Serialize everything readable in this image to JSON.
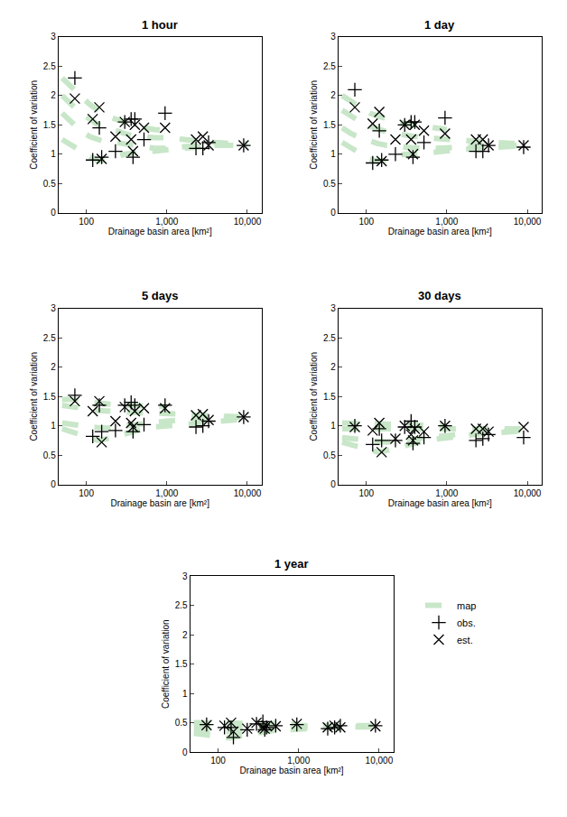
{
  "chart_data": [
    {
      "type": "scatter",
      "title": "1 hour",
      "x_label": "Drainage basin area [km²]",
      "y_label": "Coefficient of variation",
      "log": "x",
      "xlim": [
        45,
        15000
      ],
      "ylim": [
        0,
        3
      ],
      "xticks": [
        100,
        {
          "value": 1000,
          "label": "1,000"
        },
        {
          "value": 10000,
          "label": "10,000"
        }
      ],
      "yticks": [
        0,
        0.5,
        1,
        1.5,
        2,
        2.5,
        3
      ],
      "series": [
        {
          "name": "map",
          "type": "line",
          "line_style": "dash",
          "color": "#c8e6c8",
          "x": [
            50,
            65,
            85,
            110,
            140,
            180,
            230,
            300,
            400,
            520,
            700,
            1000,
            1500,
            2500,
            4000,
            7000,
            10000
          ],
          "values": [
            [
              2.3,
              2.15,
              2.0,
              1.85,
              1.75,
              1.65,
              1.6,
              1.55,
              1.5,
              1.45,
              1.42,
              1.4,
              null,
              null,
              null,
              null,
              null
            ],
            [
              2.0,
              1.85,
              1.7,
              1.6,
              1.5,
              1.45,
              1.4,
              1.35,
              1.3,
              1.3,
              1.28,
              1.28,
              1.25,
              1.22,
              1.2,
              1.18,
              1.18
            ],
            [
              1.7,
              1.55,
              1.4,
              1.3,
              1.25,
              1.2,
              1.2,
              1.18,
              1.15,
              1.12,
              1.1,
              1.1,
              1.12,
              1.15,
              1.15,
              1.15,
              1.15
            ],
            [
              1.25,
              1.15,
              1.05,
              0.95,
              0.88,
              0.9,
              0.95,
              1.0,
              1.02,
              1.05,
              1.05,
              1.08,
              1.1,
              1.12,
              1.15,
              1.15,
              1.15
            ]
          ]
        },
        {
          "name": "obs.",
          "marker": "cross",
          "color": "#000000",
          "x": [
            72,
            120,
            145,
            155,
            230,
            300,
            360,
            380,
            400,
            520,
            950,
            2300,
            2800,
            3300,
            9000
          ],
          "values": [
            2.3,
            0.9,
            1.45,
            0.95,
            1.05,
            1.55,
            1.6,
            0.95,
            1.6,
            1.25,
            1.7,
            1.1,
            1.1,
            1.2,
            1.15
          ]
        },
        {
          "name": "est.",
          "marker": "x",
          "color": "#000000",
          "x": [
            72,
            120,
            145,
            155,
            230,
            300,
            360,
            380,
            400,
            520,
            950,
            2300,
            2800,
            3300,
            9000
          ],
          "values": [
            1.95,
            1.6,
            1.8,
            0.92,
            1.3,
            1.55,
            1.25,
            1.05,
            1.5,
            1.45,
            1.45,
            1.25,
            1.3,
            1.15,
            1.15
          ]
        }
      ]
    },
    {
      "type": "scatter",
      "title": "1 day",
      "x_label": "Drainage basin area [km²]",
      "y_label": "Coefficient of variation",
      "log": "x",
      "xlim": [
        45,
        15000
      ],
      "ylim": [
        0,
        3
      ],
      "xticks": [
        100,
        {
          "value": 1000,
          "label": "1,000"
        },
        {
          "value": 10000,
          "label": "10,000"
        }
      ],
      "yticks": [
        0,
        0.5,
        1,
        1.5,
        2,
        2.5,
        3
      ],
      "series": [
        {
          "name": "map",
          "type": "line",
          "line_style": "dash",
          "color": "#c8e6c8",
          "x": [
            50,
            65,
            85,
            110,
            140,
            180,
            230,
            300,
            400,
            520,
            700,
            1000,
            1500,
            2500,
            4000,
            7000,
            10000
          ],
          "values": [
            [
              2.0,
              1.9,
              1.8,
              1.7,
              1.65,
              1.6,
              1.55,
              1.52,
              1.5,
              1.48,
              1.45,
              1.42,
              null,
              null,
              null,
              null,
              null
            ],
            [
              1.75,
              1.65,
              1.55,
              1.48,
              1.42,
              1.38,
              1.35,
              1.32,
              1.3,
              1.28,
              1.27,
              1.26,
              1.24,
              1.22,
              1.2,
              1.18,
              1.18
            ],
            [
              1.45,
              1.35,
              1.28,
              1.22,
              1.18,
              1.15,
              1.15,
              1.12,
              1.1,
              1.1,
              1.1,
              1.1,
              1.12,
              1.14,
              1.15,
              1.15,
              1.15
            ],
            [
              1.2,
              1.1,
              1.0,
              0.92,
              0.88,
              0.9,
              0.95,
              1.0,
              1.0,
              1.02,
              1.03,
              1.05,
              1.08,
              1.1,
              1.12,
              1.15,
              1.15
            ]
          ]
        },
        {
          "name": "obs.",
          "marker": "cross",
          "color": "#000000",
          "x": [
            72,
            120,
            145,
            155,
            230,
            300,
            360,
            380,
            400,
            520,
            950,
            2300,
            2800,
            3300,
            9000
          ],
          "values": [
            2.1,
            0.85,
            1.4,
            0.9,
            1.0,
            1.5,
            1.55,
            0.95,
            1.55,
            1.2,
            1.62,
            1.05,
            1.05,
            1.15,
            1.12
          ]
        },
        {
          "name": "est.",
          "marker": "x",
          "color": "#000000",
          "x": [
            72,
            120,
            145,
            155,
            230,
            300,
            360,
            380,
            400,
            520,
            950,
            2300,
            2800,
            3300,
            9000
          ],
          "values": [
            1.8,
            1.52,
            1.72,
            0.88,
            1.25,
            1.5,
            1.25,
            1.0,
            1.5,
            1.4,
            1.35,
            1.25,
            1.25,
            1.15,
            1.15
          ]
        }
      ]
    },
    {
      "type": "scatter",
      "title": "5 days",
      "x_label": "Drainage basin are [km²]",
      "y_label": "Coefficient of variation",
      "log": "x",
      "xlim": [
        45,
        15000
      ],
      "ylim": [
        0,
        3
      ],
      "xticks": [
        100,
        {
          "value": 1000,
          "label": "1,000"
        },
        {
          "value": 10000,
          "label": "10,000"
        }
      ],
      "yticks": [
        0,
        0.5,
        1,
        1.5,
        2,
        2.5,
        3
      ],
      "series": [
        {
          "name": "map",
          "type": "line",
          "line_style": "dash",
          "color": "#c8e6c8",
          "x": [
            50,
            65,
            85,
            110,
            140,
            180,
            230,
            300,
            400,
            520,
            700,
            1000,
            1500,
            2500,
            4000,
            7000,
            10000
          ],
          "values": [
            [
              1.45,
              1.45,
              1.42,
              1.4,
              1.38,
              1.37,
              1.36,
              1.35,
              1.35,
              1.34,
              1.34,
              1.33,
              null,
              null,
              null,
              null,
              null
            ],
            [
              1.35,
              1.32,
              1.3,
              1.28,
              1.26,
              1.25,
              1.24,
              1.24,
              1.23,
              1.22,
              1.22,
              1.22,
              1.2,
              1.18,
              1.17,
              1.16,
              1.15
            ],
            [
              1.05,
              1.02,
              1.0,
              0.98,
              0.97,
              0.96,
              0.98,
              1.0,
              1.02,
              1.05,
              1.05,
              1.08,
              1.1,
              1.12,
              1.13,
              1.14,
              1.15
            ],
            [
              0.95,
              0.9,
              0.85,
              0.8,
              0.75,
              0.78,
              0.82,
              0.88,
              0.92,
              0.95,
              0.98,
              1.0,
              1.02,
              1.05,
              1.08,
              1.1,
              1.12
            ]
          ]
        },
        {
          "name": "obs.",
          "marker": "cross",
          "color": "#000000",
          "x": [
            72,
            120,
            145,
            155,
            230,
            300,
            360,
            380,
            400,
            520,
            950,
            2300,
            2800,
            3300,
            9000
          ],
          "values": [
            1.52,
            0.82,
            1.35,
            0.9,
            0.92,
            1.35,
            1.4,
            0.9,
            1.35,
            1.02,
            1.35,
            0.98,
            1.0,
            1.08,
            1.15
          ]
        },
        {
          "name": "est.",
          "marker": "x",
          "color": "#000000",
          "x": [
            72,
            120,
            145,
            155,
            230,
            300,
            360,
            380,
            400,
            520,
            950,
            2300,
            2800,
            3300,
            9000
          ],
          "values": [
            1.42,
            1.25,
            1.42,
            0.72,
            1.08,
            1.32,
            1.05,
            0.98,
            1.25,
            1.3,
            1.3,
            1.18,
            1.2,
            1.1,
            1.15
          ]
        }
      ]
    },
    {
      "type": "scatter",
      "title": "30 days",
      "x_label": "Drainage basin area [km²]",
      "y_label": "Coefficient of variation",
      "log": "x",
      "xlim": [
        45,
        15000
      ],
      "ylim": [
        0,
        3
      ],
      "xticks": [
        100,
        {
          "value": 1000,
          "label": "1,000"
        },
        {
          "value": 10000,
          "label": "10,000"
        }
      ],
      "yticks": [
        0,
        0.5,
        1,
        1.5,
        2,
        2.5,
        3
      ],
      "series": [
        {
          "name": "map",
          "type": "line",
          "line_style": "dash",
          "color": "#c8e6c8",
          "x": [
            50,
            65,
            85,
            110,
            140,
            180,
            230,
            300,
            400,
            520,
            700,
            1000,
            1500,
            2500,
            4000,
            7000,
            10000
          ],
          "values": [
            [
              1.05,
              1.05,
              1.04,
              1.04,
              1.03,
              1.03,
              1.02,
              1.02,
              1.02,
              1.02,
              1.01,
              1.0,
              null,
              null,
              null,
              null,
              null
            ],
            [
              0.95,
              0.95,
              0.95,
              0.94,
              0.94,
              0.93,
              0.93,
              0.93,
              0.93,
              0.93,
              0.94,
              0.95,
              0.95,
              0.95,
              0.95,
              0.95,
              0.95
            ],
            [
              0.8,
              0.78,
              0.76,
              0.74,
              0.72,
              0.72,
              0.74,
              0.76,
              0.78,
              0.8,
              0.82,
              0.84,
              0.86,
              0.88,
              0.9,
              0.92,
              0.93
            ],
            [
              0.72,
              0.68,
              0.64,
              0.6,
              0.55,
              0.58,
              0.62,
              0.66,
              0.7,
              0.74,
              0.77,
              0.8,
              0.83,
              0.86,
              0.88,
              0.9,
              0.92
            ]
          ]
        },
        {
          "name": "obs.",
          "marker": "cross",
          "color": "#000000",
          "x": [
            72,
            120,
            145,
            155,
            230,
            300,
            360,
            380,
            400,
            520,
            950,
            2300,
            2800,
            3300,
            9000
          ],
          "values": [
            1.0,
            0.68,
            0.95,
            0.75,
            0.75,
            0.98,
            1.08,
            0.7,
            0.98,
            0.8,
            1.0,
            0.75,
            0.78,
            0.85,
            0.8
          ]
        },
        {
          "name": "est.",
          "marker": "x",
          "color": "#000000",
          "x": [
            72,
            120,
            145,
            155,
            230,
            300,
            360,
            380,
            400,
            520,
            950,
            2300,
            2800,
            3300,
            9000
          ],
          "values": [
            0.98,
            0.92,
            1.05,
            0.55,
            0.78,
            1.0,
            0.85,
            0.75,
            0.95,
            0.9,
            1.0,
            0.95,
            0.95,
            0.9,
            0.98
          ]
        }
      ]
    },
    {
      "type": "scatter",
      "title": "1 year",
      "x_label": "Drainage basin area [km²]",
      "y_label": "Coefficient of variation",
      "log": "x",
      "xlim": [
        45,
        15000
      ],
      "ylim": [
        0,
        3
      ],
      "legend": "right",
      "xticks": [
        100,
        {
          "value": 1000,
          "label": "1,000"
        },
        {
          "value": 10000,
          "label": "10,000"
        }
      ],
      "yticks": [
        0,
        0.5,
        1,
        1.5,
        2,
        2.5,
        3
      ],
      "series": [
        {
          "name": "map",
          "type": "line",
          "line_style": "dash",
          "color": "#c8e6c8",
          "x": [
            50,
            65,
            85,
            110,
            140,
            180,
            230,
            300,
            400,
            520,
            700,
            1000,
            1500,
            2500,
            4000,
            7000,
            10000
          ],
          "values": [
            [
              0.5,
              0.5,
              0.5,
              0.5,
              0.49,
              0.49,
              0.49,
              0.48,
              0.48,
              0.48,
              0.48,
              0.48,
              null,
              null,
              null,
              null,
              null
            ],
            [
              0.45,
              0.45,
              0.45,
              0.45,
              0.45,
              0.45,
              0.45,
              0.45,
              0.45,
              0.45,
              0.45,
              0.45,
              0.45,
              0.45,
              0.45,
              0.45,
              0.45
            ],
            [
              0.38,
              0.37,
              0.36,
              0.35,
              0.35,
              0.36,
              0.37,
              0.38,
              0.39,
              0.4,
              0.4,
              0.41,
              0.42,
              0.42,
              0.43,
              0.43,
              0.44
            ],
            [
              0.32,
              0.3,
              0.28,
              0.26,
              0.24,
              0.27,
              0.3,
              0.33,
              0.35,
              0.37,
              0.38,
              0.4,
              0.41,
              0.42,
              0.43,
              0.43,
              0.44
            ]
          ]
        },
        {
          "name": "obs.",
          "marker": "cross",
          "color": "#000000",
          "x": [
            72,
            120,
            145,
            155,
            230,
            300,
            360,
            380,
            400,
            520,
            950,
            2300,
            2800,
            3300,
            9000
          ],
          "values": [
            0.47,
            0.42,
            0.42,
            0.25,
            0.38,
            0.48,
            0.52,
            0.38,
            0.42,
            0.45,
            0.47,
            0.4,
            0.42,
            0.45,
            0.45
          ]
        },
        {
          "name": "est.",
          "marker": "x",
          "color": "#000000",
          "x": [
            72,
            120,
            145,
            155,
            230,
            300,
            360,
            380,
            400,
            520,
            950,
            2300,
            2800,
            3300,
            9000
          ],
          "values": [
            0.46,
            0.45,
            0.5,
            0.35,
            0.4,
            0.5,
            0.42,
            0.4,
            0.45,
            0.44,
            0.48,
            0.42,
            0.45,
            0.42,
            0.44
          ]
        }
      ]
    }
  ]
}
